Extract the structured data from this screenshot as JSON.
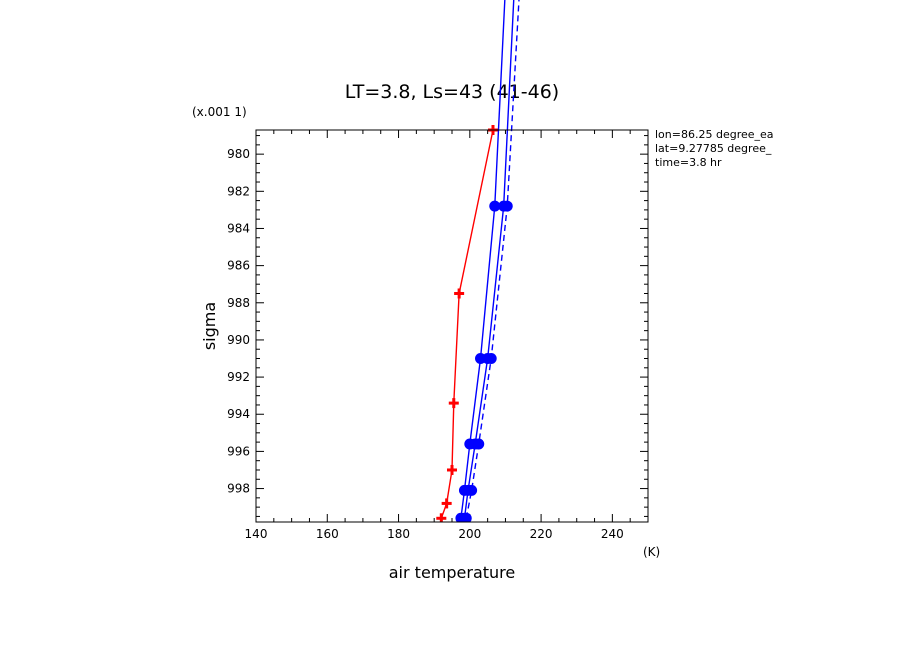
{
  "chart_data": {
    "type": "line",
    "title": "LT=3.8, Ls=43 (41-46)",
    "xlabel": "air temperature",
    "ylabel": "sigma",
    "x_units": "(K)",
    "y_units": "(x.001 1)",
    "xlim": [
      140,
      250
    ],
    "ylim": [
      999.8,
      978.7
    ],
    "y_inverted": true,
    "x_ticks": [
      140,
      160,
      180,
      200,
      220,
      240
    ],
    "y_ticks": [
      980,
      982,
      984,
      986,
      988,
      990,
      992,
      994,
      996,
      998
    ],
    "annotations": [
      "lon=86.25 degree_ea",
      "lat=9.27785 degree_",
      "time=3.8 hr"
    ],
    "colors": {
      "red": "#ff0000",
      "blue": "#0000ff"
    },
    "series": [
      {
        "color": "#ff0000",
        "style": "solid",
        "marker": "plus",
        "points": [
          [
            192.0,
            999.6
          ],
          [
            193.5,
            998.8
          ],
          [
            195.0,
            997.0
          ],
          [
            195.5,
            993.4
          ],
          [
            197.0,
            987.5
          ],
          [
            206.5,
            978.7
          ]
        ]
      },
      {
        "color": "#0000ff",
        "style": "solid",
        "marker": "circle",
        "points": [
          [
            197.5,
            999.6
          ],
          [
            198.5,
            998.1
          ],
          [
            200.0,
            995.6
          ],
          [
            203.0,
            991.0
          ],
          [
            207.0,
            982.8
          ],
          [
            210.0,
            971.0
          ]
        ]
      },
      {
        "color": "#0000ff",
        "style": "solid",
        "marker": "circle",
        "points": [
          [
            198.5,
            999.6
          ],
          [
            199.5,
            998.1
          ],
          [
            201.5,
            995.6
          ],
          [
            205.0,
            991.0
          ],
          [
            209.5,
            982.8
          ],
          [
            212.5,
            971.0
          ]
        ]
      },
      {
        "color": "#0000ff",
        "style": "dashed",
        "marker": "circle",
        "points": [
          [
            199.0,
            999.6
          ],
          [
            200.5,
            998.1
          ],
          [
            202.5,
            995.6
          ],
          [
            206.0,
            991.0
          ],
          [
            210.5,
            982.8
          ],
          [
            214.0,
            971.0
          ]
        ]
      }
    ]
  }
}
